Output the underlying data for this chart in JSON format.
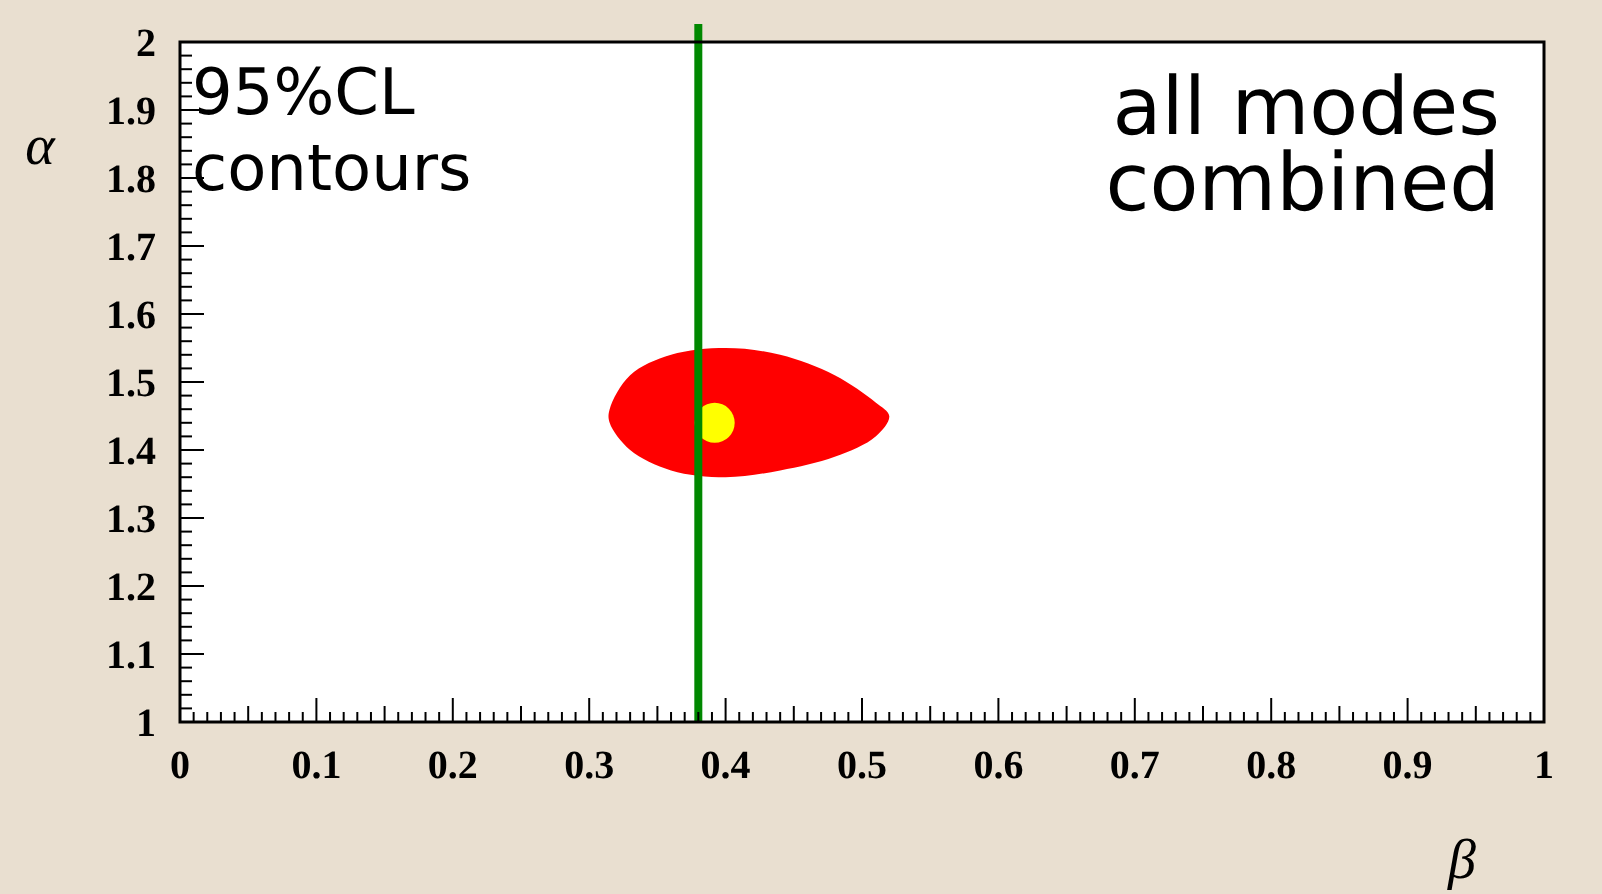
{
  "chart_data": {
    "type": "scatter",
    "xlabel": "β",
    "ylabel": "α",
    "xlim": [
      0,
      1
    ],
    "ylim": [
      1,
      2
    ],
    "xticks": [
      0,
      0.1,
      0.2,
      0.3,
      0.4,
      0.5,
      0.6,
      0.7,
      0.8,
      0.9,
      1
    ],
    "yticks": [
      1,
      1.1,
      1.2,
      1.3,
      1.4,
      1.5,
      1.6,
      1.7,
      1.8,
      1.9,
      2
    ],
    "grid": false,
    "annotations": [
      "95%CL contours",
      "all modes combined"
    ],
    "series": [
      {
        "type": "area",
        "color": "#ff0000",
        "x": [
          0.315,
          0.33,
          0.36,
          0.4,
          0.44,
          0.48,
          0.51,
          0.52,
          0.51,
          0.48,
          0.44,
          0.4,
          0.36,
          0.33,
          0.315
        ],
        "values": [
          1.46,
          1.51,
          1.54,
          1.55,
          1.54,
          1.51,
          1.47,
          1.45,
          1.42,
          1.39,
          1.37,
          1.36,
          1.37,
          1.4,
          1.44
        ]
      },
      {
        "color": "#ffff00",
        "marker": "circle",
        "x": [
          0.392
        ],
        "values": [
          1.44
        ]
      }
    ],
    "ref_lines": [
      {
        "axis": "x",
        "value": 0.38,
        "color": "#008800"
      }
    ]
  }
}
